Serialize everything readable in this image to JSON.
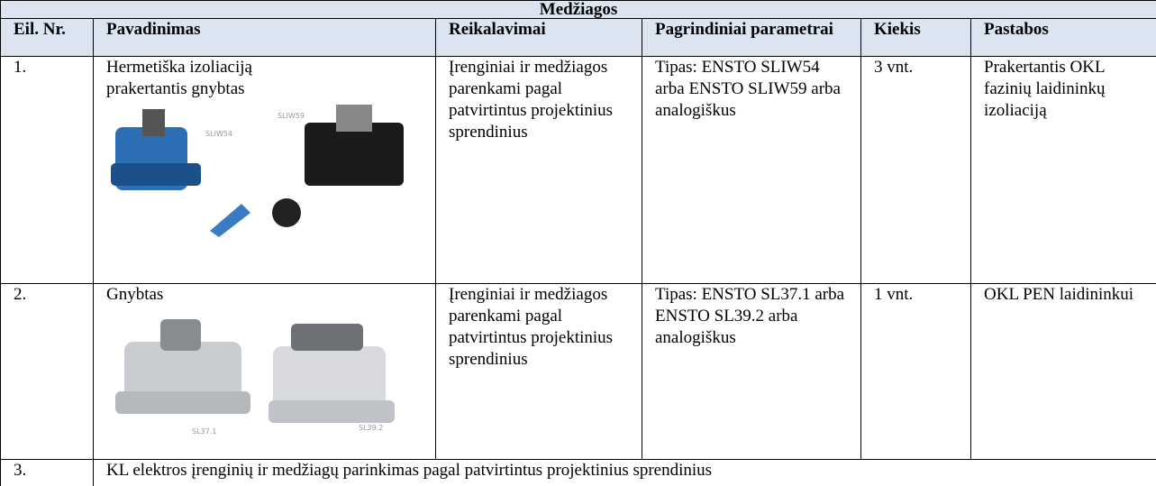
{
  "table": {
    "title": "Medžiagos",
    "header": [
      "Eil. Nr.",
      "Pavadinimas",
      "Reikalavimai",
      "Pagrindiniai parametrai",
      "Kiekis",
      "Pastabos"
    ],
    "rows": [
      {
        "no": "1.",
        "name": "Hermetiška izoliaciją prakertantis gnybtas",
        "images": [
          "SLIW54",
          "SLIW59"
        ],
        "requirements": "Įrenginiai ir medžiagos parenkami pagal patvirtintus projektinius sprendinius",
        "parameters": "Tipas: ENSTO SLIW54 arba ENSTO SLIW59 arba analogiškus",
        "quantity": "3 vnt.",
        "notes": "Prakertantis OKL fazinių laidininkų izoliaciją"
      },
      {
        "no": "2.",
        "name": "Gnybtas",
        "images": [
          "SL37.1",
          "SL39.2"
        ],
        "requirements": "Įrenginiai ir medžiagos parenkami pagal patvirtintus projektinius sprendinius",
        "parameters": "Tipas: ENSTO SL37.1 arba ENSTO SL39.2 arba analogiškus",
        "quantity": "1 vnt.",
        "notes": "OKL PEN laidininkui"
      },
      {
        "no": "3.",
        "text": "KL elektros įrenginių ir medžiagų parinkimas pagal patvirtintus projektinius sprendinius"
      }
    ]
  }
}
